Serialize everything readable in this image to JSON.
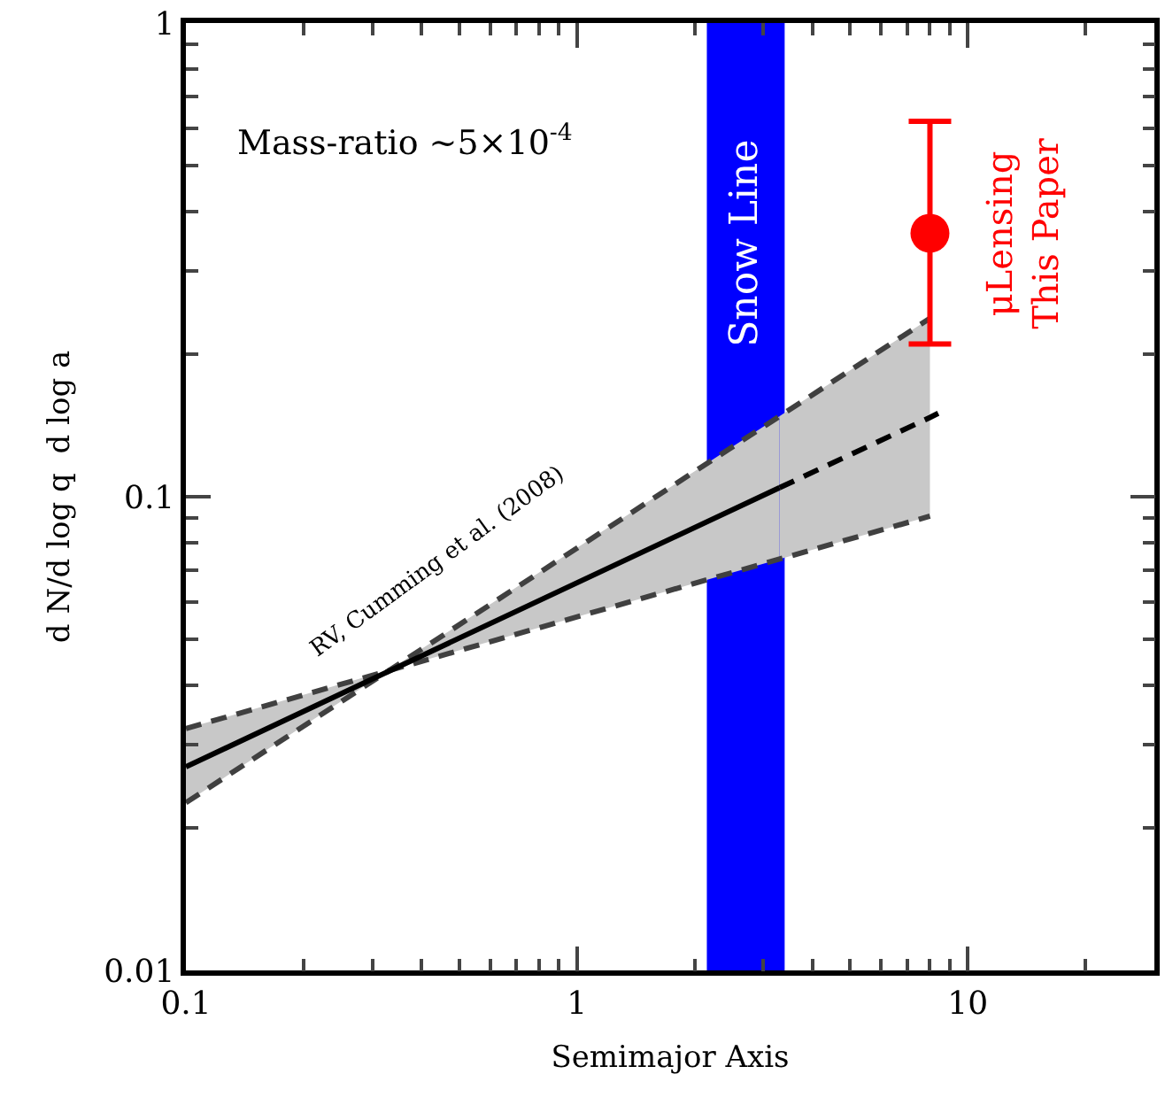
{
  "chart_data": {
    "type": "line",
    "xlabel": "Semimajor Axis",
    "ylabel": "d N/d log q  d log a",
    "log": "xy",
    "xlim": [
      0.1,
      30
    ],
    "ylim": [
      0.01,
      1
    ],
    "xticks": [
      0.1,
      1,
      10
    ],
    "yticks": [
      0.01,
      0.1,
      1
    ],
    "grid": false,
    "series": [
      {
        "color": "#404040",
        "line_style": "dashed",
        "x": [
          0.1,
          8
        ],
        "values": [
          0.0324,
          0.091
        ]
      },
      {
        "color": "#404040",
        "line_style": "dashed",
        "x": [
          0.1,
          8
        ],
        "values": [
          0.0226,
          0.238
        ]
      },
      {
        "color": "#000000",
        "line_style": "solid",
        "x": [
          0.1,
          0.33,
          3.3
        ],
        "values": [
          0.0269,
          0.0428,
          0.1045
        ],
        "lower": [
          0.0226,
          0.043,
          0.0738
        ],
        "upper": [
          0.0324,
          0.043,
          0.148
        ]
      },
      {
        "color": "#000000",
        "line_style": "dashed",
        "x": [
          3.3,
          8,
          8.4
        ],
        "values": [
          0.1045,
          0.147,
          0.15
        ],
        "lower": [
          0.0738,
          0.091,
          null
        ],
        "upper": [
          0.148,
          0.238,
          null
        ]
      },
      {
        "type": "scatter",
        "name": "μLensing\nThis Paper",
        "color": "#ff0000",
        "marker": "circle",
        "x": [
          8
        ],
        "values": [
          0.36
        ],
        "errors": [
          [
            0.21,
            0.62
          ]
        ]
      }
    ],
    "bands": [
      {
        "axis": "x",
        "from": 2.15,
        "to": 3.4,
        "label": "Snow Line",
        "color": "#0000ff"
      }
    ],
    "annotations": [
      "Mass-ratio ~5×10$^{-4}$",
      "RV, Cumming et al. (2008)"
    ]
  }
}
